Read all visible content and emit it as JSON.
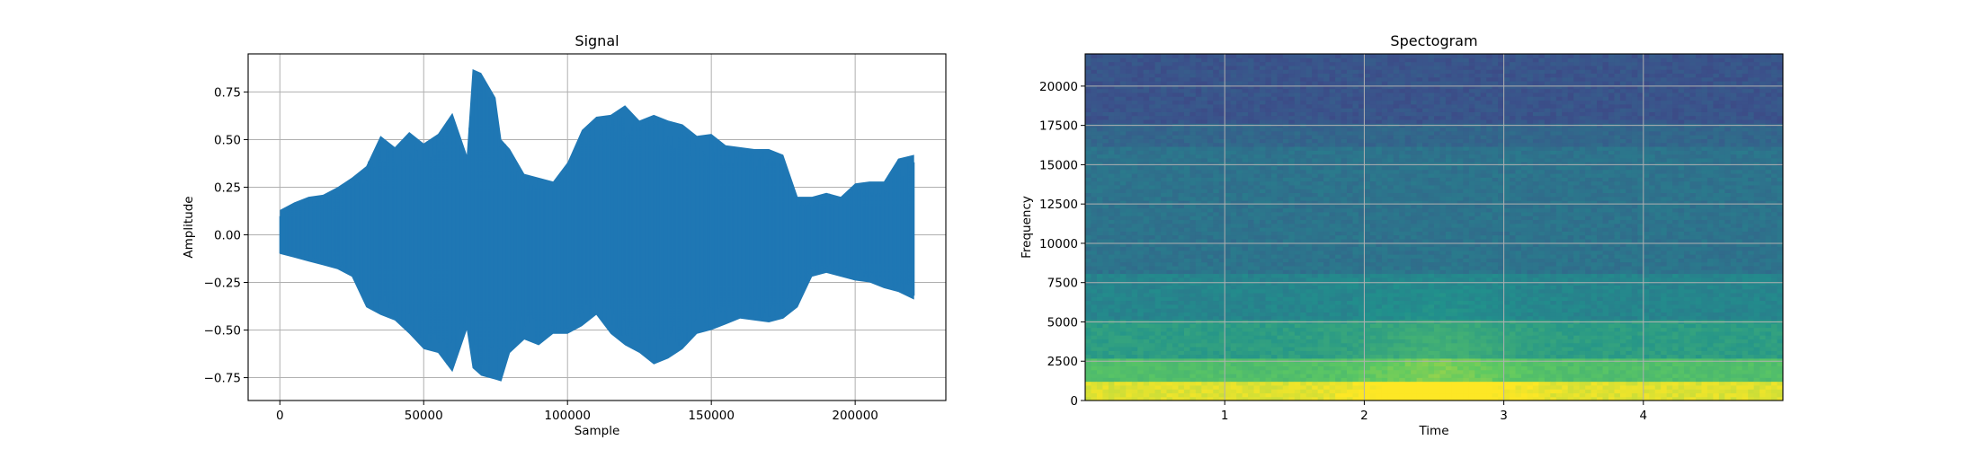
{
  "chart_data": [
    {
      "type": "line",
      "title": "Signal",
      "xlabel": "Sample",
      "ylabel": "Amplitude",
      "xlim": [
        -11025,
        231525
      ],
      "ylim": [
        -0.87,
        0.95
      ],
      "xticks": [
        0,
        50000,
        100000,
        150000,
        200000
      ],
      "xtick_labels": [
        "0",
        "50000",
        "100000",
        "150000",
        "200000"
      ],
      "yticks": [
        -0.75,
        -0.5,
        -0.25,
        0.0,
        0.25,
        0.5,
        0.75
      ],
      "ytick_labels": [
        "−0.75",
        "−0.50",
        "−0.25",
        "0.00",
        "0.25",
        "0.50",
        "0.75"
      ],
      "grid": true,
      "color": "#1f77b4",
      "series": [
        {
          "x": [
            0,
            5000,
            10000,
            15000,
            20000,
            25000,
            30000,
            35000,
            40000,
            45000,
            50000,
            55000,
            60000,
            65000,
            67000,
            70000,
            75000,
            77000,
            80000,
            85000,
            90000,
            95000,
            100000,
            105000,
            110000,
            115000,
            120000,
            125000,
            130000,
            135000,
            140000,
            145000,
            150000,
            155000,
            160000,
            165000,
            170000,
            175000,
            180000,
            185000,
            190000,
            195000,
            200000,
            205000,
            210000,
            215000,
            220500
          ],
          "max": [
            0.13,
            0.17,
            0.2,
            0.21,
            0.25,
            0.3,
            0.36,
            0.52,
            0.46,
            0.54,
            0.48,
            0.53,
            0.64,
            0.42,
            0.87,
            0.85,
            0.72,
            0.5,
            0.45,
            0.32,
            0.3,
            0.28,
            0.38,
            0.55,
            0.62,
            0.63,
            0.68,
            0.6,
            0.63,
            0.6,
            0.58,
            0.52,
            0.53,
            0.47,
            0.46,
            0.45,
            0.45,
            0.42,
            0.2,
            0.2,
            0.22,
            0.2,
            0.27,
            0.28,
            0.28,
            0.4,
            0.42
          ],
          "min": [
            -0.1,
            -0.12,
            -0.14,
            -0.16,
            -0.18,
            -0.22,
            -0.38,
            -0.42,
            -0.45,
            -0.52,
            -0.6,
            -0.62,
            -0.72,
            -0.5,
            -0.7,
            -0.74,
            -0.76,
            -0.77,
            -0.62,
            -0.55,
            -0.58,
            -0.52,
            -0.52,
            -0.48,
            -0.42,
            -0.52,
            -0.58,
            -0.62,
            -0.68,
            -0.65,
            -0.6,
            -0.52,
            -0.5,
            -0.47,
            -0.44,
            -0.45,
            -0.46,
            -0.44,
            -0.38,
            -0.22,
            -0.2,
            -0.22,
            -0.24,
            -0.25,
            -0.28,
            -0.3,
            -0.34
          ]
        }
      ]
    },
    {
      "type": "heatmap",
      "title": "Spectogram",
      "xlabel": "Time",
      "ylabel": "Frequency",
      "xlim": [
        0,
        5.0
      ],
      "ylim": [
        0,
        22050
      ],
      "xticks": [
        1,
        2,
        3,
        4
      ],
      "xtick_labels": [
        "1",
        "2",
        "3",
        "4"
      ],
      "yticks": [
        0,
        2500,
        5000,
        7500,
        10000,
        12500,
        15000,
        17500,
        20000
      ],
      "ytick_labels": [
        "0",
        "2500",
        "5000",
        "7500",
        "10000",
        "12500",
        "15000",
        "17500",
        "20000"
      ],
      "grid": true,
      "colormap": "viridis",
      "bands": [
        {
          "f0": 0,
          "f1": 1000,
          "level": 0.9
        },
        {
          "f0": 1000,
          "f1": 2500,
          "level": 0.7
        },
        {
          "f0": 2500,
          "f1": 5000,
          "level": 0.55
        },
        {
          "f0": 5000,
          "f1": 8000,
          "level": 0.45
        },
        {
          "f0": 8000,
          "f1": 16000,
          "level": 0.38
        },
        {
          "f0": 16000,
          "f1": 17600,
          "level": 0.33
        },
        {
          "f0": 17600,
          "f1": 22050,
          "level": 0.26
        }
      ]
    }
  ]
}
